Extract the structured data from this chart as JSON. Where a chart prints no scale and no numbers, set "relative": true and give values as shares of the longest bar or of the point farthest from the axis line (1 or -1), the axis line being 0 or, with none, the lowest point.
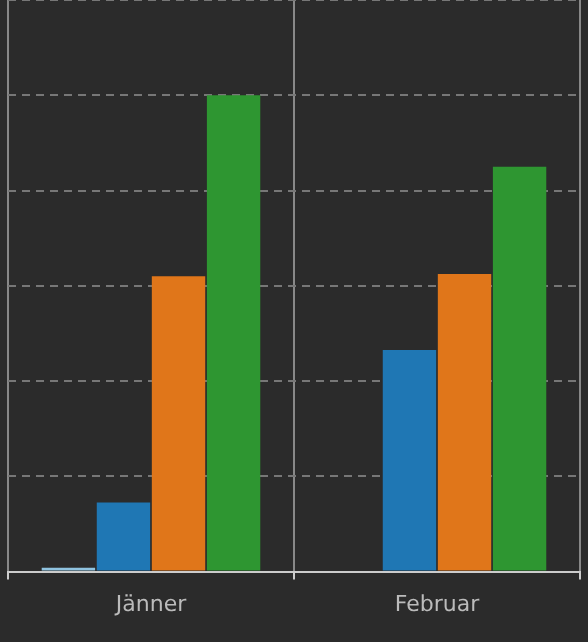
{
  "chart_data": {
    "type": "bar",
    "relative": true,
    "categories": [
      "Jänner",
      "Februar"
    ],
    "series": [
      {
        "color": "#8fc3e0",
        "values": [
          0.008,
          null
        ]
      },
      {
        "color": "#1f77b4",
        "values": [
          0.145,
          0.465
        ]
      },
      {
        "color": "#e0761a",
        "values": [
          0.62,
          0.625
        ]
      },
      {
        "color": "#2e9631",
        "values": [
          1,
          0.85
        ]
      }
    ],
    "grid": true,
    "legend": false
  }
}
